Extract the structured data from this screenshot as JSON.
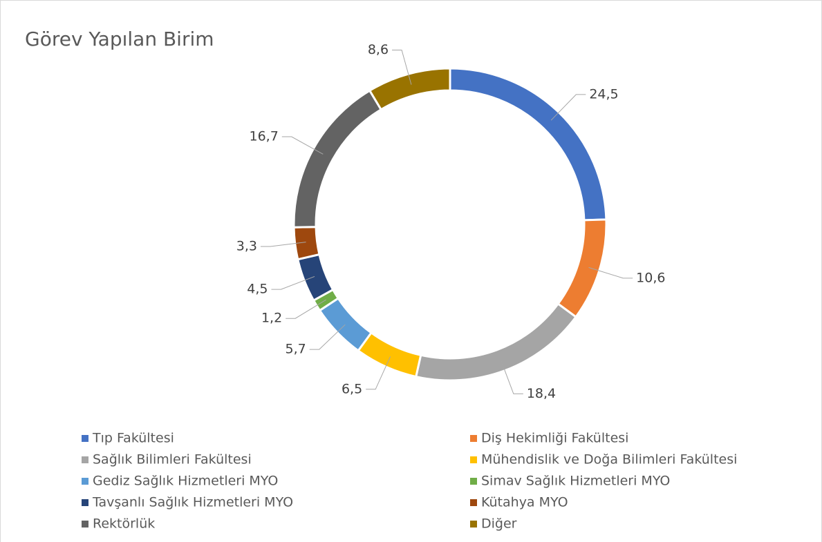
{
  "chart_data": {
    "type": "donut",
    "title": "Görev Yapılan Birim",
    "categories": [
      "Tıp Fakültesi",
      "Diş Hekimliği Fakültesi",
      "Sağlık Bilimleri Fakültesi",
      "Mühendislik ve Doğa Bilimleri Fakültesi",
      "Gediz Sağlık Hizmetleri MYO",
      "Simav Sağlık Hizmetleri MYO",
      "Tavşanlı Sağlık Hizmetleri MYO",
      "Kütahya MYO",
      "Rektörlük",
      "Diğer"
    ],
    "values": [
      24.5,
      10.6,
      18.4,
      6.5,
      5.7,
      1.2,
      4.5,
      3.3,
      16.7,
      8.6
    ],
    "value_labels": [
      "24,5",
      "10,6",
      "18,4",
      "6,5",
      "5,7",
      "1,2",
      "4,5",
      "3,3",
      "16,7",
      "8,6"
    ],
    "colors": [
      "#4472c4",
      "#ed7d31",
      "#a5a5a5",
      "#ffc000",
      "#5b9bd5",
      "#70ad47",
      "#264478",
      "#9e480e",
      "#636363",
      "#997300"
    ],
    "legend": "bottom"
  }
}
